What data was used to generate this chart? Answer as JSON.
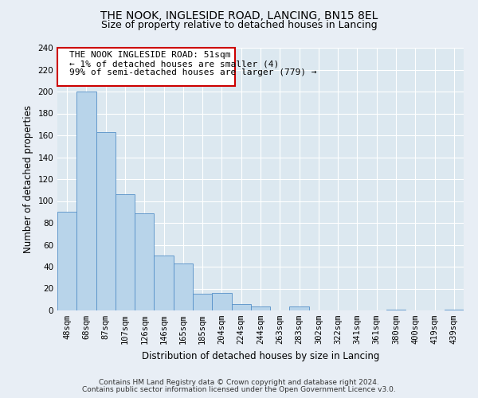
{
  "title": "THE NOOK, INGLESIDE ROAD, LANCING, BN15 8EL",
  "subtitle": "Size of property relative to detached houses in Lancing",
  "xlabel": "Distribution of detached houses by size in Lancing",
  "ylabel": "Number of detached properties",
  "bar_labels": [
    "48sqm",
    "68sqm",
    "87sqm",
    "107sqm",
    "126sqm",
    "146sqm",
    "165sqm",
    "185sqm",
    "204sqm",
    "224sqm",
    "244sqm",
    "263sqm",
    "283sqm",
    "302sqm",
    "322sqm",
    "341sqm",
    "361sqm",
    "380sqm",
    "400sqm",
    "419sqm",
    "439sqm"
  ],
  "bar_values": [
    90,
    200,
    163,
    106,
    89,
    50,
    43,
    15,
    16,
    6,
    4,
    0,
    4,
    0,
    0,
    0,
    0,
    1,
    0,
    0,
    1
  ],
  "bar_color": "#b8d4ea",
  "bar_edge_color": "#5590c8",
  "ylim": [
    0,
    240
  ],
  "yticks": [
    0,
    20,
    40,
    60,
    80,
    100,
    120,
    140,
    160,
    180,
    200,
    220,
    240
  ],
  "annotation_title": "THE NOOK INGLESIDE ROAD: 51sqm",
  "annotation_line1": "← 1% of detached houses are smaller (4)",
  "annotation_line2": "99% of semi-detached houses are larger (779) →",
  "annotation_box_color": "#ffffff",
  "annotation_border_color": "#cc0000",
  "footer_line1": "Contains HM Land Registry data © Crown copyright and database right 2024.",
  "footer_line2": "Contains public sector information licensed under the Open Government Licence v3.0.",
  "fig_background_color": "#e8eef5",
  "plot_background_color": "#dce8f0",
  "grid_color": "#ffffff",
  "title_fontsize": 10,
  "subtitle_fontsize": 9,
  "axis_label_fontsize": 8.5,
  "tick_fontsize": 7.5,
  "annotation_fontsize": 8,
  "footer_fontsize": 6.5
}
